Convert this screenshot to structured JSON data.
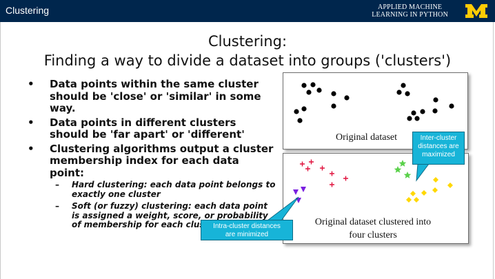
{
  "header": {
    "title": "Clustering",
    "brand_line1": "APPLIED MACHINE",
    "brand_line2": "LEARNING IN PYTHON",
    "logo_color": "#ffcb05",
    "bar_color": "#00264d"
  },
  "slide": {
    "title_line1": "Clustering:",
    "title_line2": "Finding a way to divide a dataset into groups ('clusters')",
    "bullet_symbol": "•",
    "dash_symbol": "–",
    "bullets": [
      "Data points within the same cluster should be 'close' or 'similar' in some way.",
      "Data points in different clusters should be 'far apart' or 'different'",
      "Clustering algorithms output a cluster membership index for each data point:"
    ],
    "sub_bullets": [
      "Hard clustering: each data point belongs to exactly one cluster",
      "Soft (or fuzzy) clustering: each data point is assigned a weight, score, or probability of membership for each cluster"
    ]
  },
  "figures": {
    "original_caption": "Original dataset",
    "clustered_caption_line1": "Original dataset clustered into",
    "clustered_caption_line2": "four clusters",
    "callout_inter": [
      "Inter-cluster",
      "distances are",
      "maximized"
    ],
    "callout_intra": [
      "Intra-cluster distances",
      "are minimized"
    ],
    "callout_color": "#17b4d8",
    "cluster_colors": [
      "#e0103c",
      "#7a1fe0",
      "#5ad14a",
      "#ffd800"
    ]
  }
}
